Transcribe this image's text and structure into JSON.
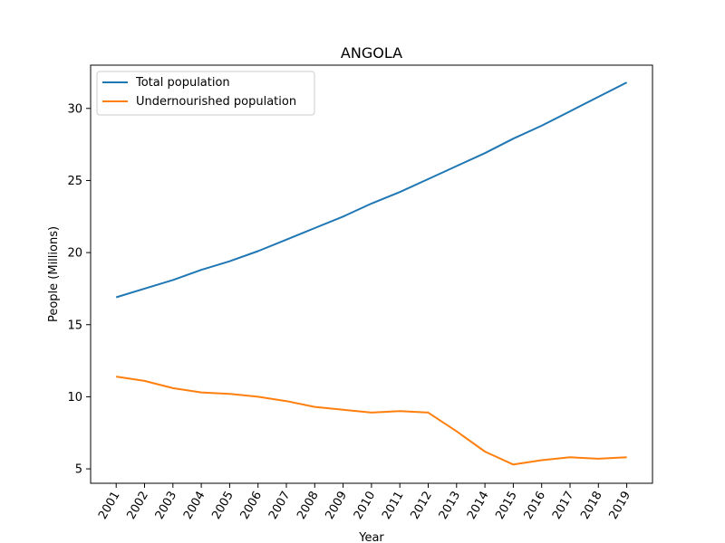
{
  "chart_data": {
    "type": "line",
    "title": "ANGOLA",
    "xlabel": "Year",
    "ylabel": "People (Millions)",
    "ylim": [
      4.0,
      33.0
    ],
    "yticks": [
      5,
      10,
      15,
      20,
      25,
      30
    ],
    "categories": [
      "2001",
      "2002",
      "2003",
      "2004",
      "2005",
      "2006",
      "2007",
      "2008",
      "2009",
      "2010",
      "2011",
      "2012",
      "2013",
      "2014",
      "2015",
      "2016",
      "2017",
      "2018",
      "2019"
    ],
    "grid": false,
    "legend_position": "top-left",
    "series": [
      {
        "name": "Total population",
        "color": "#1f77b4",
        "values": [
          16.9,
          17.5,
          18.1,
          18.8,
          19.4,
          20.1,
          20.9,
          21.7,
          22.5,
          23.4,
          24.2,
          25.1,
          26.0,
          26.9,
          27.9,
          28.8,
          29.8,
          30.8,
          31.8
        ]
      },
      {
        "name": "Undernourished population",
        "color": "#ff7f0e",
        "values": [
          11.4,
          11.1,
          10.6,
          10.3,
          10.2,
          10.0,
          9.7,
          9.3,
          9.1,
          8.9,
          9.0,
          8.9,
          7.6,
          6.2,
          5.3,
          5.6,
          5.8,
          5.7,
          5.8
        ]
      }
    ]
  }
}
